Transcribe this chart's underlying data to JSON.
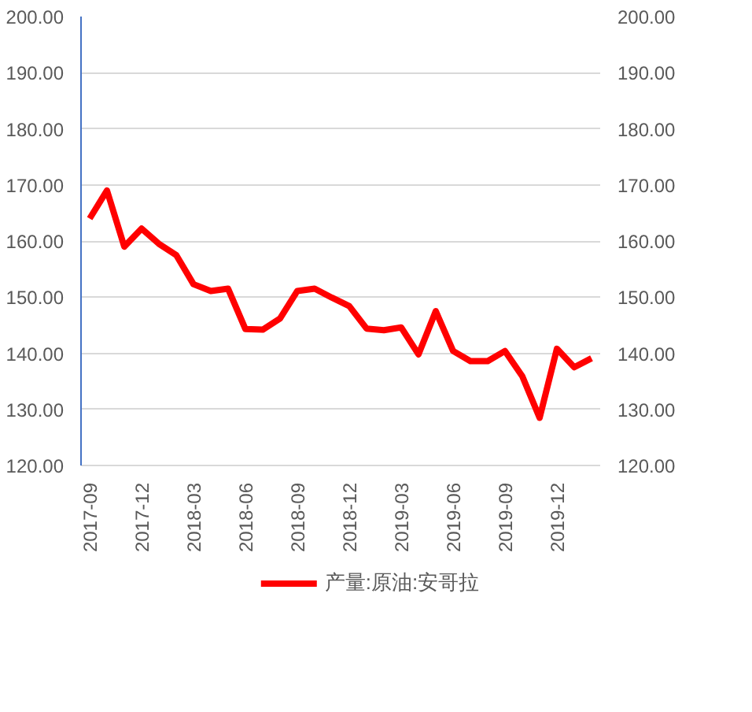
{
  "chart_data": {
    "type": "line",
    "x": [
      "2017-09",
      "2017-10",
      "2017-11",
      "2017-12",
      "2018-01",
      "2018-02",
      "2018-03",
      "2018-04",
      "2018-05",
      "2018-06",
      "2018-07",
      "2018-08",
      "2018-09",
      "2018-10",
      "2018-11",
      "2018-12",
      "2019-01",
      "2019-02",
      "2019-03",
      "2019-04",
      "2019-05",
      "2019-06",
      "2019-07",
      "2019-08",
      "2019-09",
      "2019-10",
      "2019-11",
      "2019-12",
      "2020-01",
      "2020-02"
    ],
    "series": [
      {
        "name": "产量:原油:安哥拉",
        "color": "#ff0000",
        "values": [
          164,
          169,
          159,
          162.2,
          159.5,
          157.5,
          152.3,
          151.1,
          151.5,
          144.3,
          144.2,
          146.2,
          151.1,
          151.5,
          149.9,
          148.4,
          144.4,
          144.1,
          144.6,
          139.8,
          147.5,
          140.4,
          138.6,
          138.6,
          140.4,
          135.9,
          128.5,
          140.8,
          137.5,
          139.1
        ]
      }
    ],
    "ylim": [
      120,
      200
    ],
    "yticks": [
      {
        "value": 120,
        "label": "120.00"
      },
      {
        "value": 130,
        "label": "130.00"
      },
      {
        "value": 140,
        "label": "140.00"
      },
      {
        "value": 150,
        "label": "150.00"
      },
      {
        "value": 160,
        "label": "160.00"
      },
      {
        "value": 170,
        "label": "170.00"
      },
      {
        "value": 180,
        "label": "180.00"
      },
      {
        "value": 190,
        "label": "190.00"
      },
      {
        "value": 200,
        "label": "200.00"
      }
    ],
    "y2lim": [
      120,
      200
    ],
    "y2ticks": [
      {
        "value": 120,
        "label": "120.00"
      },
      {
        "value": 130,
        "label": "130.00"
      },
      {
        "value": 140,
        "label": "140.00"
      },
      {
        "value": 150,
        "label": "150.00"
      },
      {
        "value": 160,
        "label": "160.00"
      },
      {
        "value": 170,
        "label": "170.00"
      },
      {
        "value": 180,
        "label": "180.00"
      },
      {
        "value": 190,
        "label": "190.00"
      },
      {
        "value": 200,
        "label": "200.00"
      }
    ],
    "xlim": [
      "2017-08-16",
      "2020-02-16"
    ],
    "xticks": [
      "2017-09",
      "2017-12",
      "2018-03",
      "2018-06",
      "2018-09",
      "2018-12",
      "2019-03",
      "2019-06",
      "2019-09",
      "2019-12"
    ],
    "grid": "y",
    "legend": "bottom",
    "marker": "none",
    "line_style": "solid"
  }
}
